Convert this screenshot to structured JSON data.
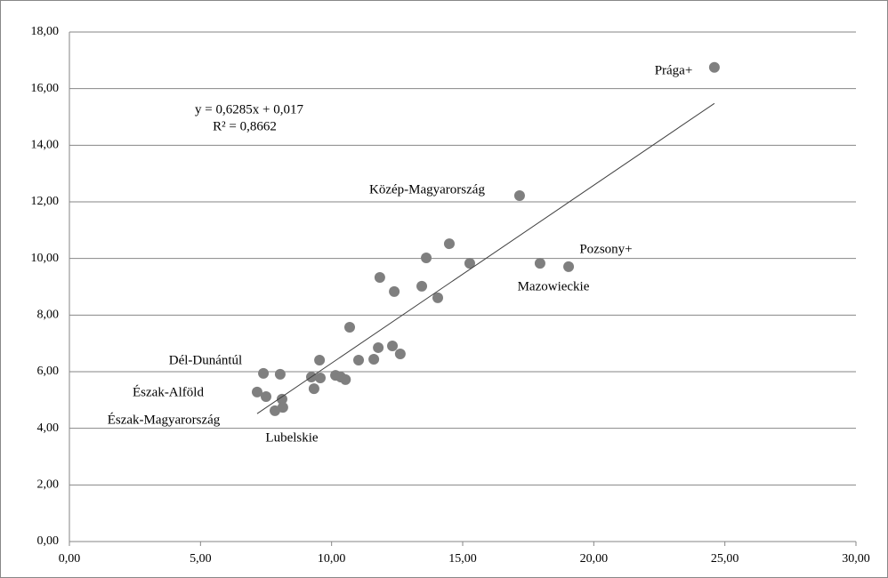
{
  "chart_data": {
    "type": "scatter",
    "series": [
      {
        "color": "#7f7f7f",
        "x": [
          24.6,
          17.17,
          14.49,
          13.61,
          15.27,
          17.95,
          19.04,
          11.84,
          12.39,
          13.44,
          14.05,
          10.69,
          11.78,
          12.32,
          12.62,
          11.61,
          11.03,
          9.54,
          7.4,
          8.04,
          9.23,
          9.57,
          10.15,
          10.35,
          10.53,
          9.33,
          7.16,
          7.5,
          8.11,
          8.14,
          7.84
        ],
        "values": [
          16.75,
          12.22,
          10.52,
          10.02,
          9.83,
          9.83,
          9.71,
          9.33,
          8.83,
          9.02,
          8.61,
          7.57,
          6.85,
          6.91,
          6.63,
          6.44,
          6.41,
          6.41,
          5.94,
          5.91,
          5.81,
          5.78,
          5.87,
          5.81,
          5.72,
          5.4,
          5.28,
          5.12,
          5.03,
          4.74,
          4.62
        ]
      }
    ],
    "trendline": {
      "slope": 0.6285,
      "intercept": 0.017,
      "x_range": [
        7.16,
        24.6
      ],
      "color": "#404040"
    },
    "annotations": [
      "y = 0,6285x + 0,017",
      "R² = 0,8662",
      "Prága+",
      "Közép-Magyarország",
      "Pozsony+",
      "Mazowieckie",
      "Dél-Dunántúl",
      "Észak-Alföld",
      "Észak-Magyarország",
      "Lubelskie"
    ],
    "xlim": [
      0,
      30
    ],
    "xticks": [
      {
        "value": 0,
        "label": "0,00"
      },
      {
        "value": 5,
        "label": "5,00"
      },
      {
        "value": 10,
        "label": "10,00"
      },
      {
        "value": 15,
        "label": "15,00"
      },
      {
        "value": 20,
        "label": "20,00"
      },
      {
        "value": 25,
        "label": "25,00"
      },
      {
        "value": 30,
        "label": "30,00"
      }
    ],
    "ylim": [
      0,
      18
    ],
    "yticks": [
      {
        "value": 0,
        "label": "0,00"
      },
      {
        "value": 2,
        "label": "2,00"
      },
      {
        "value": 4,
        "label": "4,00"
      },
      {
        "value": 6,
        "label": "6,00"
      },
      {
        "value": 8,
        "label": "8,00"
      },
      {
        "value": 10,
        "label": "10,00"
      },
      {
        "value": 12,
        "label": "12,00"
      },
      {
        "value": 14,
        "label": "14,00"
      },
      {
        "value": 16,
        "label": "16,00"
      },
      {
        "value": 18,
        "label": "18,00"
      }
    ],
    "grid": true
  }
}
